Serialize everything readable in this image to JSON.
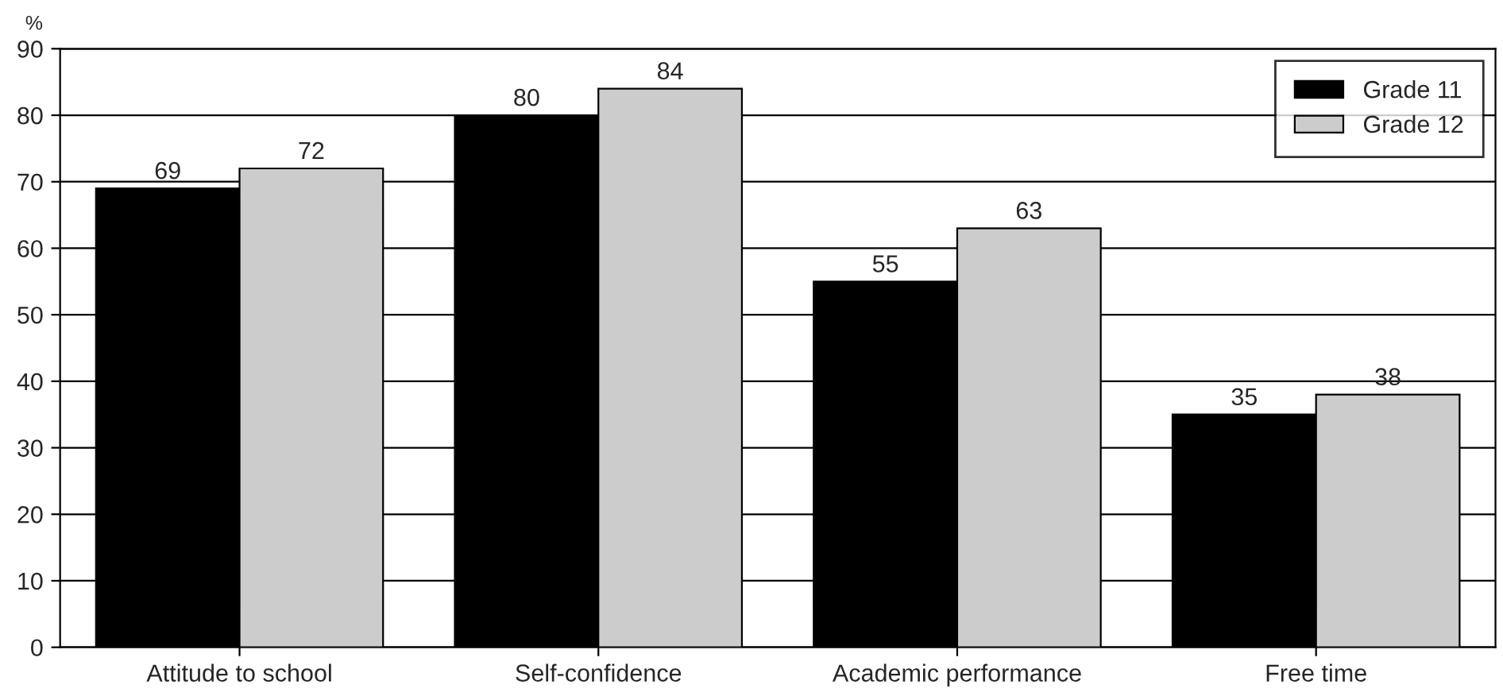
{
  "chart_data": {
    "type": "bar",
    "ylabel": "%",
    "categories": [
      "Attitude to school",
      "Self-confidence",
      "Academic performance",
      "Free time"
    ],
    "series": [
      {
        "name": "Grade 11",
        "color": "#000000",
        "values": [
          69,
          80,
          55,
          35
        ]
      },
      {
        "name": "Grade 12",
        "color": "#cccccc",
        "values": [
          72,
          84,
          63,
          38
        ]
      }
    ],
    "ylim": [
      0,
      90
    ],
    "yticks": [
      0,
      10,
      20,
      30,
      40,
      50,
      60,
      70,
      80,
      90
    ],
    "grid": "y",
    "legend": "top right",
    "data_labels": true
  }
}
